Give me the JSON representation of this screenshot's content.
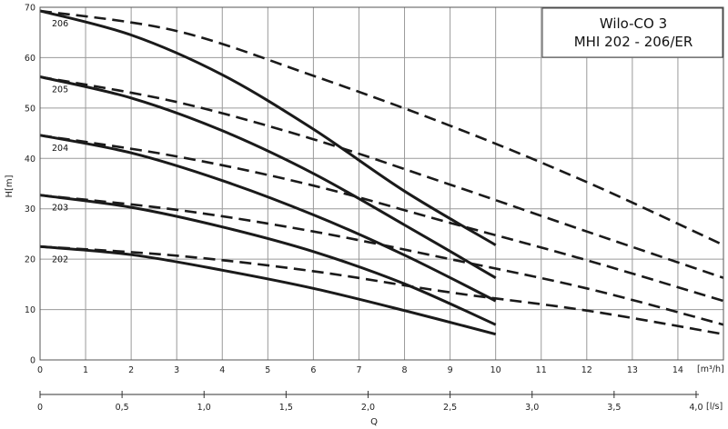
{
  "chart_data": {
    "type": "line",
    "title": [
      "Wilo-CO 3",
      "MHI 202 - 206/ER"
    ],
    "ylabel": "H[m]",
    "xlabel": "Q",
    "x_unit": "[m³/h]",
    "x2_unit": "[l/s]",
    "xlim": [
      0,
      15
    ],
    "ylim": [
      0,
      70
    ],
    "x_ticks": [
      0,
      1,
      2,
      3,
      4,
      5,
      6,
      7,
      8,
      9,
      10,
      11,
      12,
      13,
      14
    ],
    "y_ticks": [
      0,
      10,
      20,
      30,
      40,
      50,
      60,
      70
    ],
    "x2_ticks": [
      "0",
      "0,5",
      "1,0",
      "1,5",
      "2,0",
      "2,5",
      "3,0",
      "3,5",
      "4,0"
    ],
    "grid": true,
    "series": [
      {
        "name": "202",
        "solid": [
          [
            0,
            22.5
          ],
          [
            2,
            20.9
          ],
          [
            4,
            17.8
          ],
          [
            6,
            14.2
          ],
          [
            8,
            9.8
          ],
          [
            10,
            5.1
          ]
        ],
        "dashed": [
          [
            0,
            22.5
          ],
          [
            3,
            20.7
          ],
          [
            6,
            17.6
          ],
          [
            9,
            13.4
          ],
          [
            12,
            9.8
          ],
          [
            15,
            5.1
          ]
        ]
      },
      {
        "name": "203",
        "solid": [
          [
            0,
            32.7
          ],
          [
            2,
            30.3
          ],
          [
            4,
            26.4
          ],
          [
            6,
            21.5
          ],
          [
            8,
            15.1
          ],
          [
            10,
            7.0
          ]
        ],
        "dashed": [
          [
            0,
            32.7
          ],
          [
            3,
            29.8
          ],
          [
            6,
            25.5
          ],
          [
            9,
            20.0
          ],
          [
            12,
            14.2
          ],
          [
            15,
            7.0
          ]
        ]
      },
      {
        "name": "204",
        "solid": [
          [
            0,
            44.6
          ],
          [
            2,
            41.1
          ],
          [
            4,
            35.6
          ],
          [
            6,
            28.8
          ],
          [
            8,
            20.8
          ],
          [
            10,
            11.7
          ]
        ],
        "dashed": [
          [
            0,
            44.6
          ],
          [
            3,
            40.4
          ],
          [
            6,
            34.6
          ],
          [
            9,
            27.2
          ],
          [
            12,
            19.8
          ],
          [
            15,
            11.7
          ]
        ]
      },
      {
        "name": "205",
        "solid": [
          [
            0,
            56.2
          ],
          [
            2,
            52.0
          ],
          [
            4,
            45.5
          ],
          [
            6,
            37.0
          ],
          [
            8,
            26.8
          ],
          [
            10,
            16.3
          ]
        ],
        "dashed": [
          [
            0,
            56.2
          ],
          [
            3,
            51.2
          ],
          [
            6,
            43.8
          ],
          [
            9,
            34.8
          ],
          [
            12,
            25.5
          ],
          [
            15,
            16.3
          ]
        ]
      },
      {
        "name": "206",
        "solid": [
          [
            0,
            69.3
          ],
          [
            2,
            64.5
          ],
          [
            4,
            56.6
          ],
          [
            6,
            45.8
          ],
          [
            8,
            33.5
          ],
          [
            10,
            22.8
          ]
        ],
        "dashed": [
          [
            0,
            69.3
          ],
          [
            3,
            65.3
          ],
          [
            6,
            56.4
          ],
          [
            9,
            46.5
          ],
          [
            12,
            35.3
          ],
          [
            15,
            22.8
          ]
        ]
      }
    ]
  }
}
